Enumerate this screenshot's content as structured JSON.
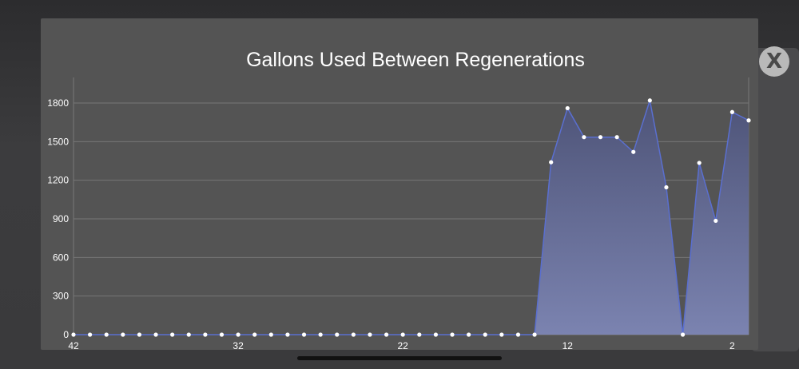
{
  "modal": {
    "title": "Gallons Used Between Regenerations",
    "close_label": "X"
  },
  "chart_data": {
    "type": "area",
    "title": "Gallons Used Between Regenerations",
    "xlabel": "",
    "ylabel": "",
    "x_order": "descending",
    "x_ticks": [
      42,
      32,
      22,
      12,
      2
    ],
    "y_ticks": [
      0,
      300,
      600,
      900,
      1200,
      1500,
      1800
    ],
    "ylim": [
      0,
      2000
    ],
    "xlim": [
      42,
      1
    ],
    "grid": true,
    "series": [
      {
        "x": [
          42,
          41,
          40,
          39,
          38,
          37,
          36,
          35,
          34,
          33,
          32,
          31,
          30,
          29,
          28,
          27,
          26,
          25,
          24,
          23,
          22,
          21,
          20,
          19,
          18,
          17,
          16,
          15,
          14,
          13,
          12,
          11,
          10,
          9,
          8,
          7,
          6,
          5,
          4,
          3,
          2,
          1
        ],
        "values": [
          0,
          0,
          0,
          0,
          0,
          0,
          0,
          0,
          0,
          0,
          0,
          0,
          0,
          0,
          0,
          0,
          0,
          0,
          0,
          0,
          0,
          0,
          0,
          0,
          0,
          0,
          0,
          0,
          0,
          1340,
          1760,
          1535,
          1535,
          1535,
          1420,
          1820,
          1145,
          0,
          1335,
          885,
          1730,
          1665
        ]
      }
    ],
    "colors": {
      "line": "#5a6fd0",
      "fill_top": "#4e5478",
      "fill_bottom": "#7b83b0",
      "marker": "#ffffff",
      "grid": "#777777",
      "tick_label": "#ffffff"
    }
  }
}
